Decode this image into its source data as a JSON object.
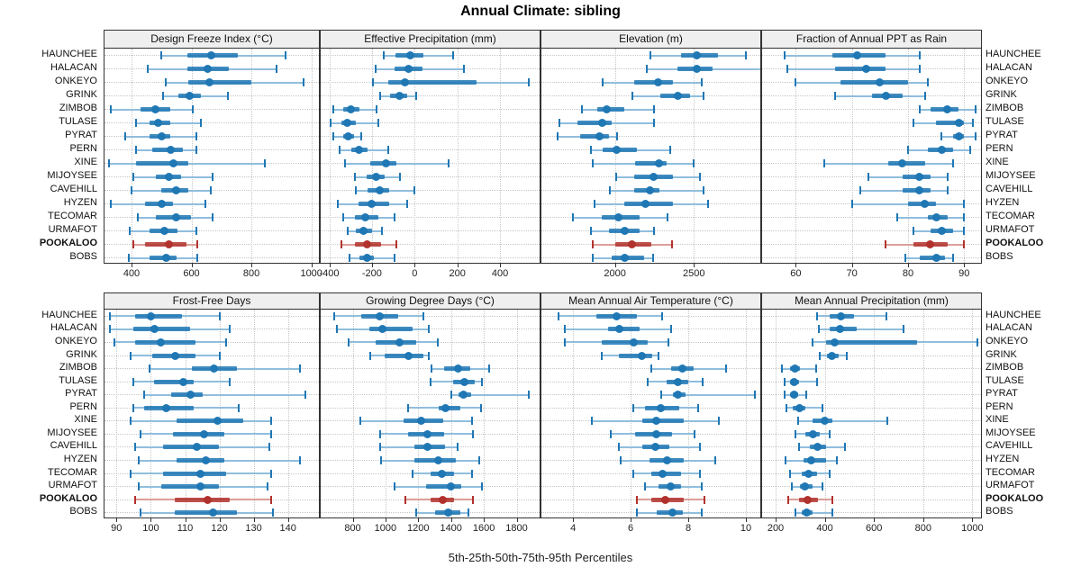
{
  "chart_data": {
    "type": "percentile-dotplot",
    "title": "Annual Climate: sibling",
    "xlabel": "5th-25th-50th-75th-95th Percentiles",
    "percentiles": [
      "5th",
      "25th",
      "50th",
      "75th",
      "95th"
    ],
    "sites": [
      "HAUNCHEE",
      "HALACAN",
      "ONKEYO",
      "GRINK",
      "ZIMBOB",
      "TULASE",
      "PYRAT",
      "PERN",
      "XINE",
      "MIJOYSEE",
      "CAVEHILL",
      "HYZEN",
      "TECOMAR",
      "URMAFOT",
      "POOKALOO",
      "BOBS"
    ],
    "highlight_site": "POOKALOO",
    "colors": {
      "series": "#1f77b4",
      "series_light": "#90bedd",
      "highlight": "#b1322d",
      "highlight_light": "#dc9e99",
      "grid": "#c7c7c7",
      "strip_bg": "#efefef",
      "border": "#333333"
    },
    "legend_position": "none",
    "grid": "dotted",
    "panels": [
      {
        "title": "Design Freeze Index (°C)",
        "row": 0,
        "col": 0,
        "xlim": [
          310,
          1025
        ],
        "ticks": [
          400,
          600,
          800,
          1000
        ],
        "values": [
          [
            500,
            585,
            665,
            755,
            915
          ],
          [
            455,
            585,
            655,
            725,
            885
          ],
          [
            515,
            590,
            660,
            800,
            975
          ],
          [
            505,
            555,
            595,
            630,
            720
          ],
          [
            330,
            430,
            480,
            530,
            605
          ],
          [
            415,
            460,
            490,
            530,
            630
          ],
          [
            380,
            460,
            500,
            530,
            615
          ],
          [
            415,
            470,
            530,
            570,
            615
          ],
          [
            325,
            415,
            540,
            590,
            845
          ],
          [
            405,
            480,
            525,
            565,
            670
          ],
          [
            400,
            500,
            550,
            590,
            665
          ],
          [
            330,
            445,
            500,
            540,
            645
          ],
          [
            420,
            480,
            550,
            600,
            670
          ],
          [
            395,
            460,
            510,
            555,
            615
          ],
          [
            405,
            445,
            525,
            585,
            620
          ],
          [
            390,
            460,
            515,
            550,
            620
          ]
        ]
      },
      {
        "title": "Effective Precipitation (mm)",
        "row": 0,
        "col": 1,
        "xlim": [
          -440,
          585
        ],
        "ticks": [
          -400,
          -200,
          0,
          200,
          400
        ],
        "values": [
          [
            -145,
            -90,
            -20,
            40,
            180
          ],
          [
            -185,
            -95,
            -30,
            35,
            230
          ],
          [
            -195,
            -125,
            -45,
            290,
            535
          ],
          [
            -160,
            -115,
            -70,
            -35,
            5
          ],
          [
            -380,
            -335,
            -300,
            -260,
            -180
          ],
          [
            -395,
            -345,
            -315,
            -275,
            -170
          ],
          [
            -380,
            -335,
            -310,
            -285,
            -250
          ],
          [
            -350,
            -295,
            -260,
            -220,
            -125
          ],
          [
            -325,
            -210,
            -135,
            -85,
            160
          ],
          [
            -280,
            -225,
            -180,
            -140,
            -70
          ],
          [
            -275,
            -220,
            -165,
            -120,
            0
          ],
          [
            -360,
            -265,
            -200,
            -120,
            -35
          ],
          [
            -335,
            -280,
            -230,
            -170,
            -95
          ],
          [
            -315,
            -275,
            -240,
            -200,
            -155
          ],
          [
            -345,
            -280,
            -225,
            -155,
            -85
          ],
          [
            -305,
            -260,
            -225,
            -190,
            -95
          ]
        ]
      },
      {
        "title": "Elevation (m)",
        "row": 0,
        "col": 2,
        "xlim": [
          1535,
          2920
        ],
        "ticks": [
          2000,
          2500
        ],
        "values": [
          [
            2225,
            2420,
            2520,
            2650,
            2830
          ],
          [
            2200,
            2395,
            2520,
            2620,
            2925
          ],
          [
            1920,
            2120,
            2270,
            2365,
            2550
          ],
          [
            2110,
            2285,
            2400,
            2475,
            2560
          ],
          [
            1790,
            1890,
            1950,
            2060,
            2245
          ],
          [
            1650,
            1765,
            1920,
            1980,
            2250
          ],
          [
            1640,
            1780,
            1900,
            1960,
            2015
          ],
          [
            1850,
            1920,
            2010,
            2140,
            2350
          ],
          [
            1860,
            2130,
            2280,
            2325,
            2500
          ],
          [
            2005,
            2120,
            2245,
            2365,
            2535
          ],
          [
            1970,
            2120,
            2220,
            2280,
            2560
          ],
          [
            1870,
            2060,
            2195,
            2365,
            2590
          ],
          [
            1735,
            1915,
            2020,
            2155,
            2335
          ],
          [
            1850,
            1960,
            2060,
            2155,
            2245
          ],
          [
            1860,
            2000,
            2105,
            2230,
            2360
          ],
          [
            1860,
            1980,
            2060,
            2185,
            2240
          ]
        ]
      },
      {
        "title": "Fraction of Annual PPT as Rain",
        "row": 0,
        "col": 3,
        "xlim": [
          54,
          93
        ],
        "ticks": [
          60,
          70,
          80,
          90
        ],
        "values": [
          [
            58,
            66.5,
            71,
            76,
            82
          ],
          [
            58.5,
            67,
            72.5,
            76,
            82
          ],
          [
            60,
            68,
            75,
            80,
            83.5
          ],
          [
            67,
            73.5,
            76,
            79,
            83
          ],
          [
            82,
            84,
            87,
            89,
            92
          ],
          [
            81,
            85,
            89,
            90,
            91.5
          ],
          [
            86,
            88,
            89,
            90,
            92
          ],
          [
            80,
            83.5,
            86,
            88,
            91
          ],
          [
            65,
            76.5,
            79,
            83,
            88
          ],
          [
            73,
            79,
            82,
            84,
            87
          ],
          [
            71.5,
            79,
            82,
            84,
            87
          ],
          [
            70,
            80,
            83,
            85,
            90
          ],
          [
            78,
            83.5,
            85,
            87,
            90
          ],
          [
            81,
            84,
            86,
            88,
            90
          ],
          [
            76,
            81,
            84,
            87,
            90
          ],
          [
            79.5,
            82,
            85,
            86.5,
            88
          ]
        ]
      },
      {
        "title": "Frost-Free Days",
        "row": 1,
        "col": 0,
        "xlim": [
          86.5,
          149
        ],
        "ticks": [
          90,
          100,
          110,
          120,
          130,
          140
        ],
        "values": [
          [
            88,
            95.5,
            100,
            109,
            120
          ],
          [
            88,
            95,
            101,
            111.5,
            123
          ],
          [
            89.5,
            95.5,
            103,
            113,
            122
          ],
          [
            94,
            100.5,
            107,
            113,
            120
          ],
          [
            99.5,
            112,
            118.5,
            125,
            143.5
          ],
          [
            95,
            101,
            109.5,
            112.5,
            123
          ],
          [
            98,
            106,
            111.5,
            115,
            145
          ],
          [
            95,
            98,
            104.5,
            112.5,
            125.5
          ],
          [
            94,
            107.5,
            119.5,
            127,
            135
          ],
          [
            97,
            106.5,
            115.5,
            121.5,
            135
          ],
          [
            95.5,
            103.5,
            113.5,
            120,
            134.5
          ],
          [
            96.5,
            107.5,
            116,
            121.5,
            143.5
          ],
          [
            94,
            103.5,
            114.5,
            122,
            135
          ],
          [
            96.5,
            103,
            114.5,
            120,
            134
          ],
          [
            95.5,
            107,
            116.5,
            123,
            135
          ],
          [
            97,
            107,
            118,
            125,
            135.5
          ]
        ]
      },
      {
        "title": "Growing Degree Days (°C)",
        "row": 1,
        "col": 1,
        "xlim": [
          605,
          1940
        ],
        "ticks": [
          800,
          1000,
          1200,
          1400,
          1600,
          1800
        ],
        "values": [
          [
            685,
            850,
            965,
            1075,
            1230
          ],
          [
            705,
            900,
            980,
            1165,
            1265
          ],
          [
            775,
            940,
            1085,
            1185,
            1320
          ],
          [
            905,
            995,
            1140,
            1230,
            1265
          ],
          [
            1280,
            1360,
            1445,
            1520,
            1630
          ],
          [
            1275,
            1415,
            1480,
            1545,
            1590
          ],
          [
            1400,
            1445,
            1475,
            1525,
            1875
          ],
          [
            1135,
            1325,
            1365,
            1455,
            1580
          ],
          [
            845,
            1110,
            1220,
            1355,
            1530
          ],
          [
            965,
            1140,
            1255,
            1360,
            1535
          ],
          [
            965,
            1175,
            1255,
            1365,
            1440
          ],
          [
            975,
            1175,
            1320,
            1430,
            1570
          ],
          [
            1165,
            1275,
            1345,
            1420,
            1530
          ],
          [
            1055,
            1250,
            1400,
            1460,
            1590
          ],
          [
            1120,
            1275,
            1350,
            1420,
            1535
          ],
          [
            1185,
            1305,
            1380,
            1455,
            1505
          ]
        ]
      },
      {
        "title": "Mean Annual Air Temperature (°C)",
        "row": 1,
        "col": 2,
        "xlim": [
          2.9,
          10.5
        ],
        "ticks": [
          4,
          6,
          8,
          10
        ],
        "values": [
          [
            3.5,
            4.8,
            5.5,
            6.2,
            7.1
          ],
          [
            3.7,
            5.2,
            5.6,
            6.3,
            7.4
          ],
          [
            3.7,
            5.0,
            6.1,
            6.6,
            7.3
          ],
          [
            5.0,
            5.6,
            6.4,
            6.75,
            6.95
          ],
          [
            6.7,
            7.4,
            7.8,
            8.2,
            9.3
          ],
          [
            6.6,
            7.25,
            7.65,
            8.0,
            8.5
          ],
          [
            7.05,
            7.45,
            7.65,
            7.9,
            10.3
          ],
          [
            6.1,
            6.5,
            7.05,
            7.7,
            8.35
          ],
          [
            4.65,
            6.4,
            6.9,
            7.85,
            9.05
          ],
          [
            5.3,
            6.15,
            6.9,
            7.45,
            8.2
          ],
          [
            5.6,
            6.4,
            6.85,
            7.35,
            8.4
          ],
          [
            5.65,
            6.65,
            7.25,
            7.85,
            8.95
          ],
          [
            6.1,
            6.7,
            7.1,
            7.75,
            8.4
          ],
          [
            6.5,
            6.95,
            7.4,
            7.75,
            8.45
          ],
          [
            6.2,
            6.7,
            7.2,
            7.85,
            8.55
          ],
          [
            6.2,
            6.9,
            7.45,
            7.8,
            8.45
          ]
        ]
      },
      {
        "title": "Mean Annual Precipitation (mm)",
        "row": 1,
        "col": 3,
        "xlim": [
          145,
          1035
        ],
        "ticks": [
          200,
          400,
          600,
          800,
          1000
        ],
        "values": [
          [
            370,
            420,
            465,
            520,
            650
          ],
          [
            375,
            420,
            460,
            530,
            720
          ],
          [
            350,
            405,
            440,
            775,
            1020
          ],
          [
            380,
            410,
            430,
            455,
            490
          ],
          [
            225,
            260,
            280,
            300,
            365
          ],
          [
            235,
            260,
            275,
            295,
            370
          ],
          [
            235,
            260,
            275,
            290,
            325
          ],
          [
            245,
            270,
            295,
            320,
            390
          ],
          [
            290,
            350,
            400,
            430,
            655
          ],
          [
            280,
            320,
            350,
            380,
            420
          ],
          [
            295,
            340,
            370,
            405,
            480
          ],
          [
            240,
            315,
            345,
            405,
            450
          ],
          [
            260,
            305,
            335,
            370,
            420
          ],
          [
            265,
            300,
            320,
            350,
            390
          ],
          [
            250,
            295,
            330,
            370,
            430
          ],
          [
            280,
            305,
            325,
            350,
            430
          ]
        ]
      }
    ]
  }
}
